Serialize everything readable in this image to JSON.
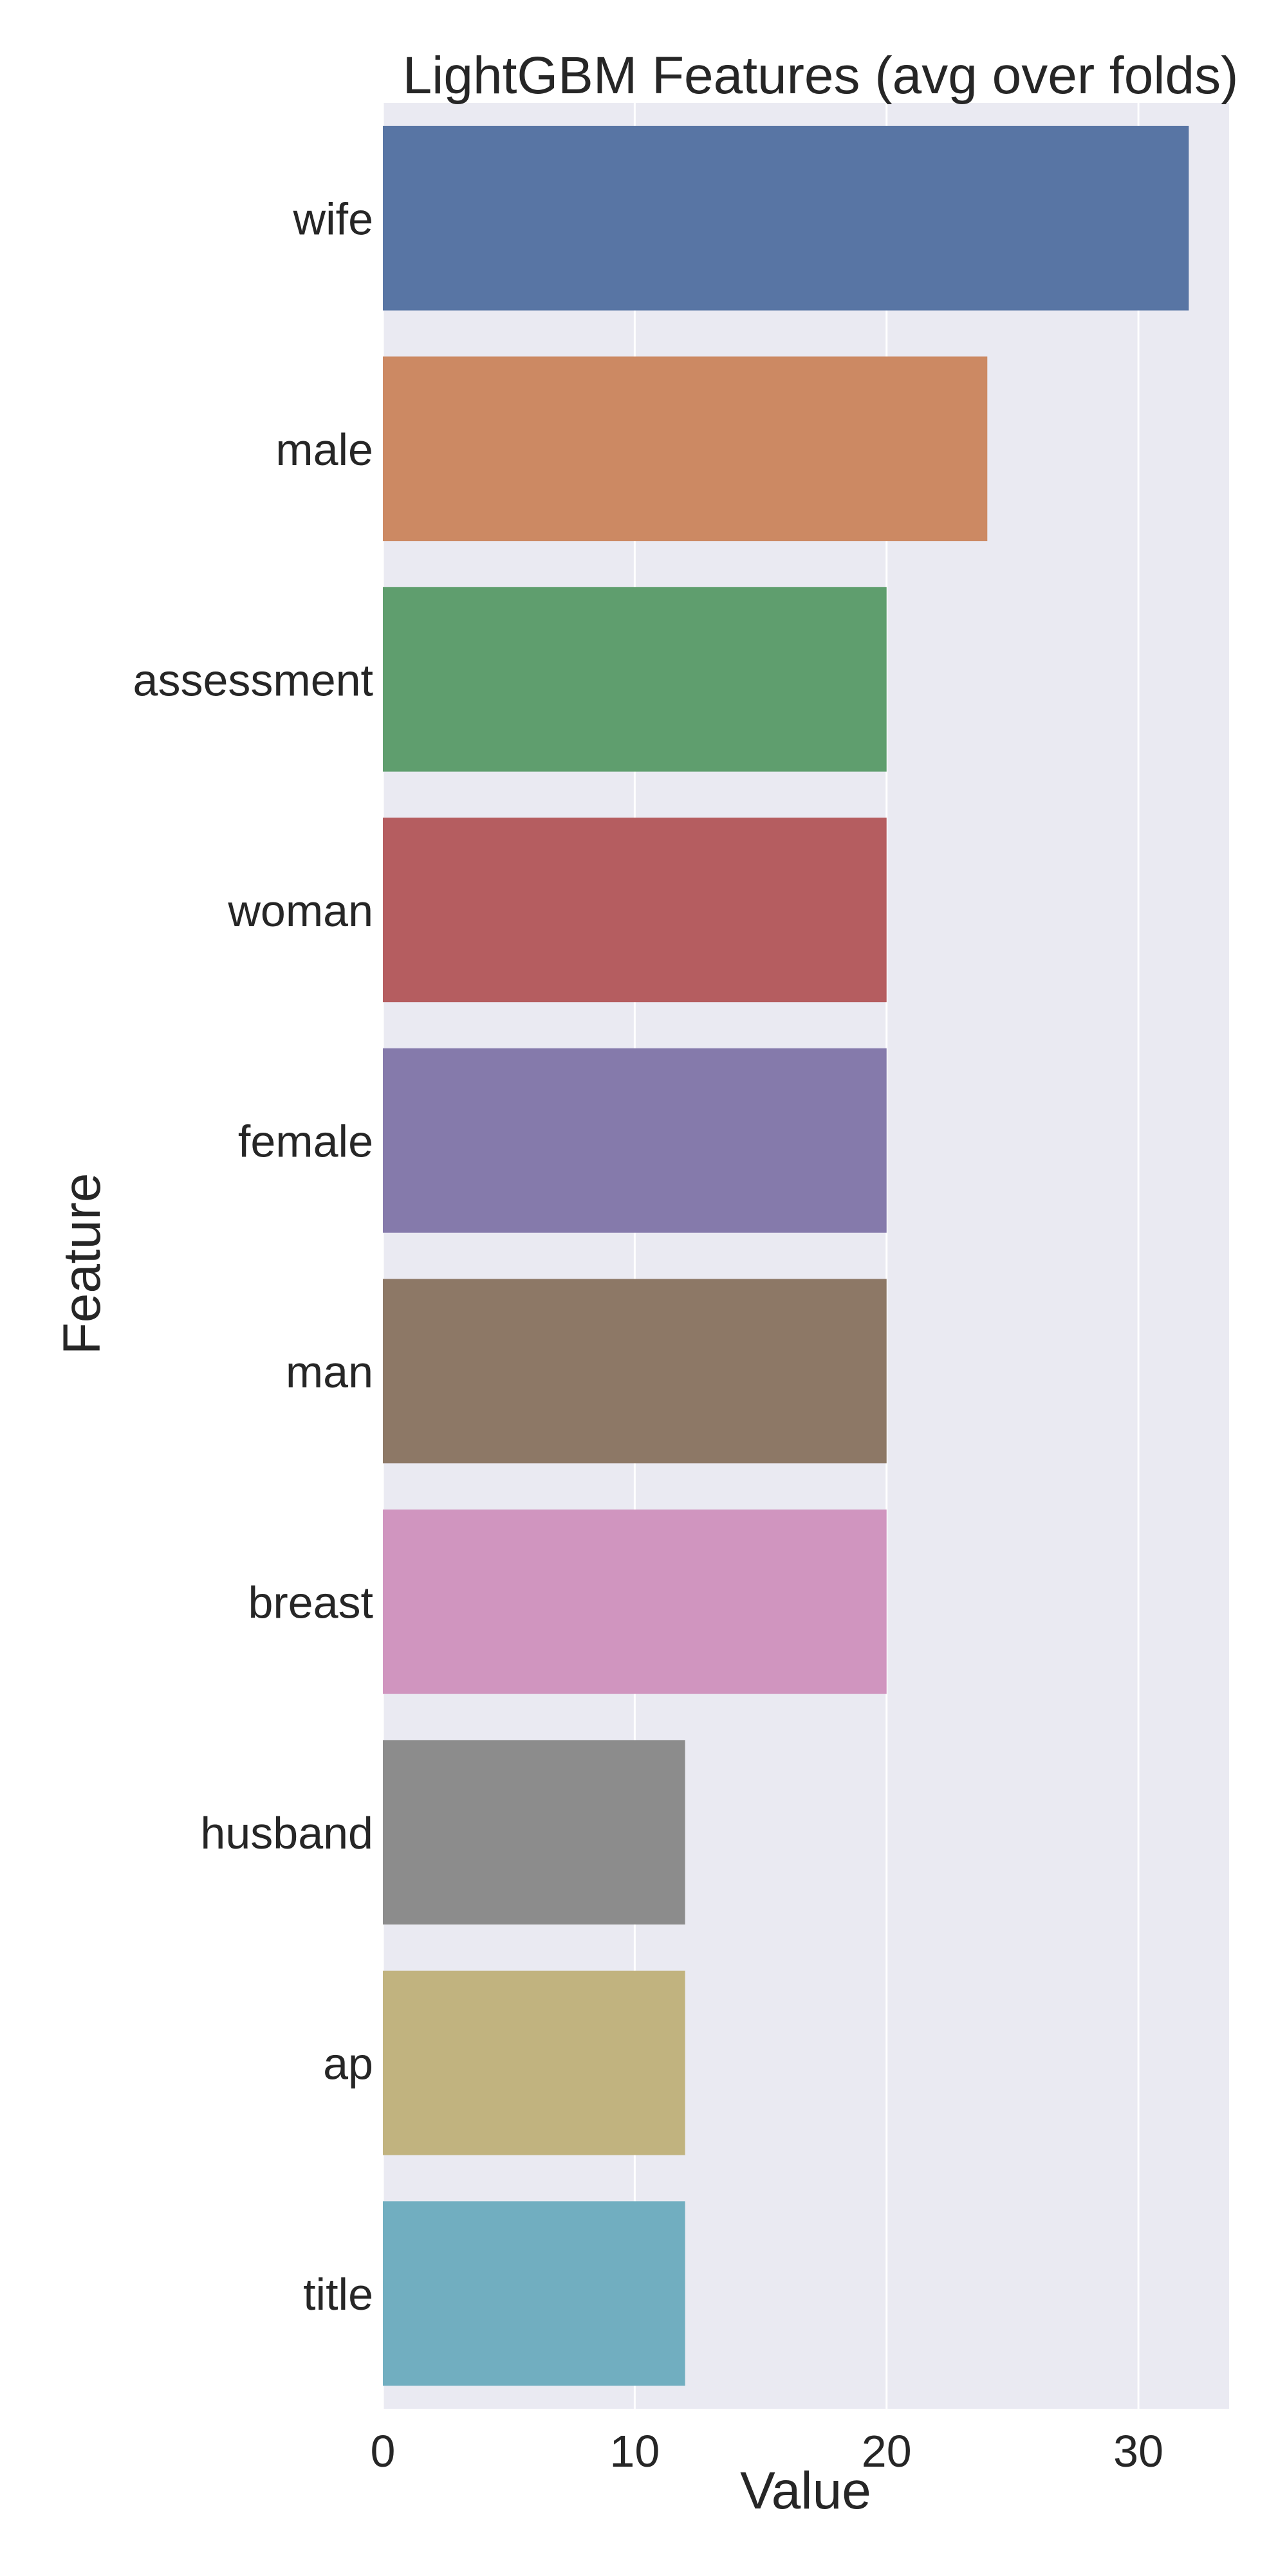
{
  "chart_data": {
    "type": "bar",
    "orientation": "horizontal",
    "title": "LightGBM Features (avg over folds)",
    "xlabel": "Value",
    "ylabel": "Feature",
    "categories": [
      "wife",
      "male",
      "assessment",
      "woman",
      "female",
      "man",
      "breast",
      "husband",
      "ap",
      "title"
    ],
    "values": [
      32,
      24,
      20,
      20,
      20,
      20,
      20,
      12,
      12,
      12
    ],
    "colors": [
      "#5875a4",
      "#cc8963",
      "#5f9e6e",
      "#b55d60",
      "#857aab",
      "#8d7866",
      "#d095bf",
      "#8c8c8c",
      "#c1b37f",
      "#71aec0"
    ],
    "xlim": [
      0,
      33.6
    ],
    "xticks": [
      0,
      10,
      20,
      30
    ],
    "grid": true,
    "background": "#eaeaf2",
    "grid_color": "#ffffff"
  }
}
